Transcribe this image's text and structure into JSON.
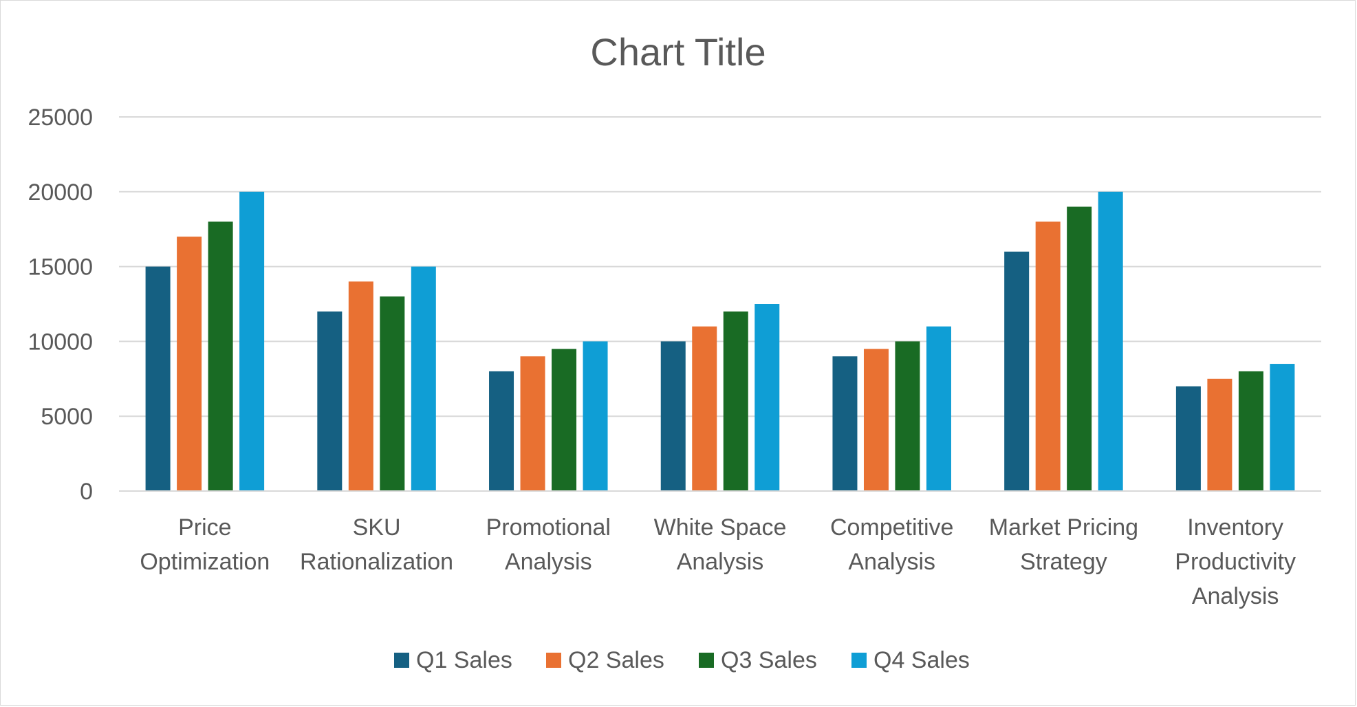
{
  "chart_data": {
    "type": "bar",
    "title": "Chart Title",
    "xlabel": "",
    "ylabel": "",
    "ylim": [
      0,
      25000
    ],
    "yticks": [
      "0",
      "5000",
      "10000",
      "15000",
      "20000",
      "25000"
    ],
    "grid": true,
    "legend_position": "bottom",
    "categories": [
      [
        "Price",
        "Optimization"
      ],
      [
        "SKU",
        "Rationalization"
      ],
      [
        "Promotional",
        "Analysis"
      ],
      [
        "White Space",
        "Analysis"
      ],
      [
        "Competitive",
        "Analysis"
      ],
      [
        "Market Pricing",
        "Strategy"
      ],
      [
        "Inventory",
        "Productivity",
        "Analysis"
      ]
    ],
    "series": [
      {
        "name": "Q1 Sales",
        "color": "#156082",
        "values": [
          15000,
          12000,
          8000,
          10000,
          9000,
          16000,
          7000
        ]
      },
      {
        "name": "Q2 Sales",
        "color": "#E97132",
        "values": [
          17000,
          14000,
          9000,
          11000,
          9500,
          18000,
          7500
        ]
      },
      {
        "name": "Q3 Sales",
        "color": "#196B24",
        "values": [
          18000,
          13000,
          9500,
          12000,
          10000,
          19000,
          8000
        ]
      },
      {
        "name": "Q4 Sales",
        "color": "#0F9ED5",
        "values": [
          20000,
          15000,
          10000,
          12500,
          11000,
          20000,
          8500
        ]
      }
    ]
  }
}
